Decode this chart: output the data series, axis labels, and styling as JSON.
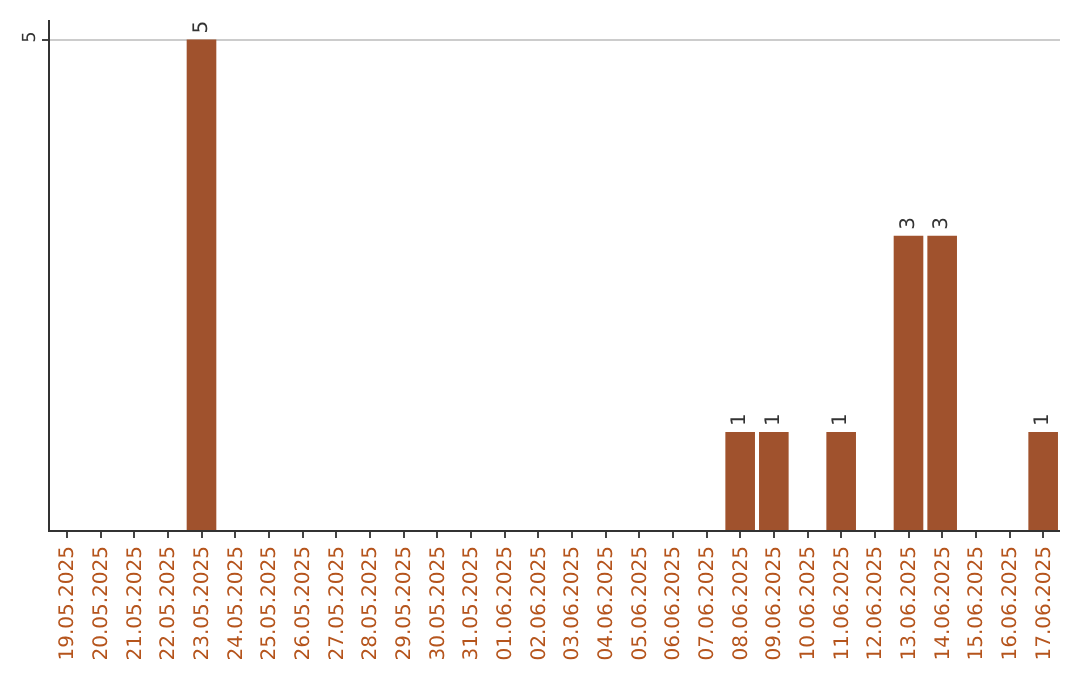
{
  "chart_data": {
    "type": "bar",
    "categories": [
      "19.05.2025",
      "20.05.2025",
      "21.05.2025",
      "22.05.2025",
      "23.05.2025",
      "24.05.2025",
      "25.05.2025",
      "26.05.2025",
      "27.05.2025",
      "28.05.2025",
      "29.05.2025",
      "30.05.2025",
      "31.05.2025",
      "01.06.2025",
      "02.06.2025",
      "03.06.2025",
      "04.06.2025",
      "05.06.2025",
      "06.06.2025",
      "07.06.2025",
      "08.06.2025",
      "09.06.2025",
      "10.06.2025",
      "11.06.2025",
      "12.06.2025",
      "13.06.2025",
      "14.06.2025",
      "15.06.2025",
      "16.06.2025",
      "17.06.2025"
    ],
    "values": [
      0,
      0,
      0,
      0,
      5,
      0,
      0,
      0,
      0,
      0,
      0,
      0,
      0,
      0,
      0,
      0,
      0,
      0,
      0,
      0,
      1,
      1,
      0,
      1,
      0,
      3,
      3,
      0,
      0,
      1
    ],
    "value_labels": [
      null,
      null,
      null,
      null,
      "5",
      null,
      null,
      null,
      null,
      null,
      null,
      null,
      null,
      null,
      null,
      null,
      null,
      null,
      null,
      null,
      "1",
      "1",
      null,
      "1",
      null,
      "3",
      "3",
      null,
      null,
      "1"
    ],
    "color": "#a0522d",
    "ylim": [
      0,
      5.2
    ],
    "yticks": [
      5
    ],
    "grid": "y"
  }
}
